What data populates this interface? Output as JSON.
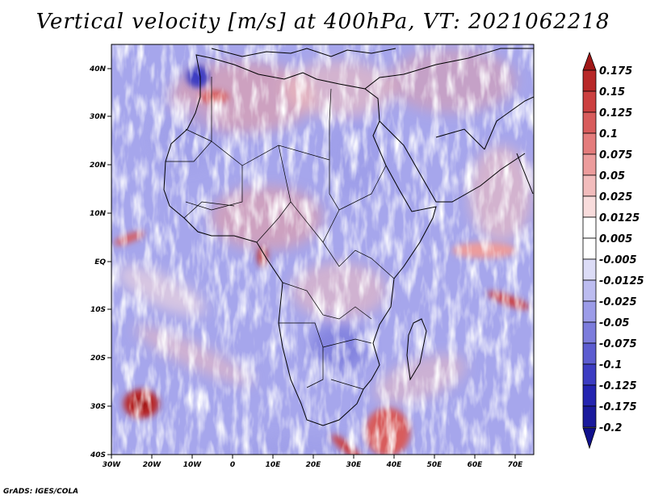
{
  "title": "Vertical velocity [m/s] at 400hPa, VT: 2021062218",
  "credit": "GrADS: IGES/COLA",
  "lat_ticks": [
    "40N",
    "30N",
    "20N",
    "10N",
    "EQ",
    "10S",
    "20S",
    "30S",
    "40S"
  ],
  "lon_ticks": [
    "30W",
    "20W",
    "10W",
    "0",
    "10E",
    "20E",
    "30E",
    "40E",
    "50E",
    "60E",
    "70E"
  ],
  "colorbar": {
    "labels": [
      "0.175",
      "0.15",
      "0.125",
      "0.1",
      "0.075",
      "0.05",
      "0.025",
      "0.0125",
      "0.005",
      "-0.005",
      "-0.0125",
      "-0.025",
      "-0.05",
      "-0.075",
      "-0.1",
      "-0.125",
      "-0.175",
      "-0.2"
    ],
    "colors": [
      "#a01818",
      "#b82828",
      "#cc4040",
      "#d85c5c",
      "#e47c7c",
      "#ec9c9c",
      "#f2bcbc",
      "#f8dcdc",
      "#ffffff",
      "#ffffff",
      "#dcdcf6",
      "#bcbcf0",
      "#9c9ce8",
      "#7c7cdc",
      "#5c5cd0",
      "#3c3cc2",
      "#2424b0",
      "#1a1a9c",
      "#10108c"
    ]
  },
  "chart_data": {
    "type": "heatmap",
    "title": "Vertical velocity [m/s] at 400hPa, VT: 2021062218",
    "variable": "Vertical velocity",
    "units": "m/s",
    "level": "400hPa",
    "valid_time": "2021062218",
    "lon_range": [
      -30,
      75
    ],
    "lat_range": [
      -40,
      45
    ],
    "contour_levels": [
      -0.2,
      -0.175,
      -0.125,
      -0.1,
      -0.075,
      -0.05,
      -0.025,
      -0.0125,
      -0.005,
      0.005,
      0.0125,
      0.025,
      0.05,
      0.075,
      0.1,
      0.125,
      0.15,
      0.175
    ]
  }
}
